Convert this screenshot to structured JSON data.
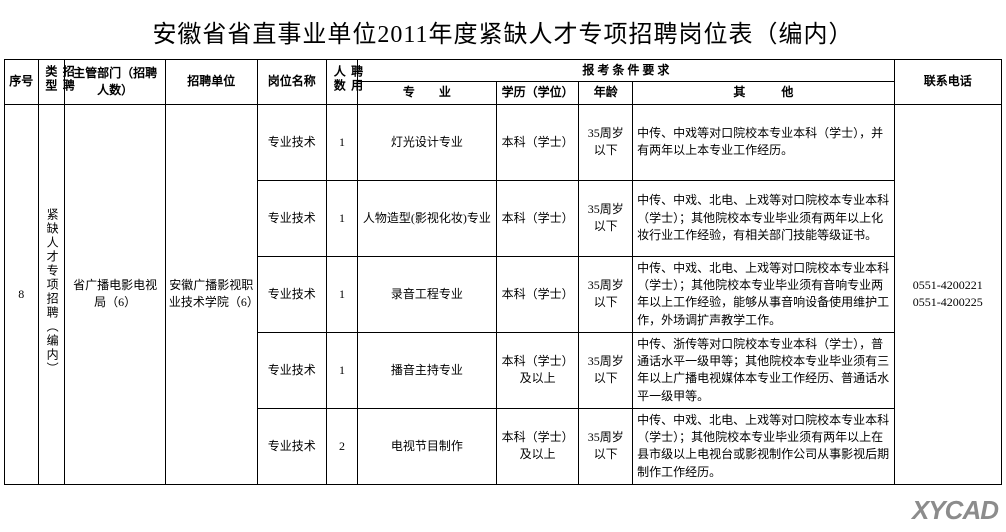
{
  "title": "安徽省省直事业单位2011年度紧缺人才专项招聘岗位表（编内）",
  "headers": {
    "seq": "序号",
    "type": "招聘类型",
    "dept": "主管部门（招聘人数）",
    "unit": "招聘单位",
    "position": "岗位名称",
    "count": "聘用人数",
    "requirements": "报 考 条 件 要 求",
    "major": "专　　业",
    "education": "学历（学位）",
    "age": "年龄",
    "other": "其　　　他",
    "phone": "联系电话"
  },
  "shared": {
    "seq": "8",
    "type": "紧缺人才专项招聘（编内）",
    "dept": "省广播电影电视局（6）",
    "unit": "安徽广播影视职业技术学院（6）",
    "phone1": "0551-4200221",
    "phone2": "0551-4200225"
  },
  "rows": [
    {
      "position": "专业技术",
      "count": "1",
      "major": "灯光设计专业",
      "education": "本科（学士）",
      "age": "35周岁以下",
      "other": "中传、中戏等对口院校本专业本科（学士），并有两年以上本专业工作经历。"
    },
    {
      "position": "专业技术",
      "count": "1",
      "major": "人物造型(影视化妆)专业",
      "education": "本科（学士）",
      "age": "35周岁以下",
      "other": "中传、中戏、北电、上戏等对口院校本专业本科（学士）；其他院校本专业毕业须有两年以上化妆行业工作经验，有相关部门技能等级证书。"
    },
    {
      "position": "专业技术",
      "count": "1",
      "major": "录音工程专业",
      "education": "本科（学士）",
      "age": "35周岁以下",
      "other": "中传、中戏、北电、上戏等对口院校本专业本科（学士）；其他院校本专业毕业须有音响专业两年以上工作经验，能够从事音响设备使用维护工作，外场调扩声教学工作。"
    },
    {
      "position": "专业技术",
      "count": "1",
      "major": "播音主持专业",
      "education": "本科（学士）及以上",
      "age": "35周岁以下",
      "other": "中传、浙传等对口院校本专业本科（学士），普通话水平一级甲等；其他院校本专业毕业须有三年以上广播电视媒体本专业工作经历、普通话水平一级甲等。"
    },
    {
      "position": "专业技术",
      "count": "2",
      "major": "电视节目制作",
      "education": "本科（学士）及以上",
      "age": "35周岁以下",
      "other": "中传、中戏、北电、上戏等对口院校本专业本科（学士）；其他院校本专业毕业须有两年以上在县市级以上电视台或影视制作公司从事影视后期制作工作经历。"
    }
  ],
  "watermark": "XYCAD",
  "colors": {
    "border": "#000000",
    "background": "#ffffff",
    "text": "#000000",
    "watermark": "#808080"
  }
}
